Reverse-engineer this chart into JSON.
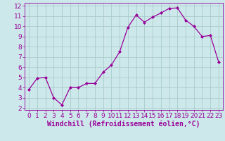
{
  "x_values": [
    0,
    1,
    2,
    3,
    4,
    5,
    6,
    7,
    8,
    9,
    10,
    11,
    12,
    13,
    14,
    15,
    16,
    17,
    18,
    19,
    20,
    21,
    22,
    23
  ],
  "y_values": [
    3.8,
    4.9,
    5.0,
    3.0,
    2.3,
    4.0,
    4.0,
    4.4,
    4.4,
    5.5,
    6.2,
    7.5,
    9.9,
    11.1,
    10.4,
    10.9,
    11.3,
    11.75,
    11.8,
    10.6,
    10.0,
    9.0,
    9.1,
    6.5
  ],
  "line_color": "#990099",
  "marker": "D",
  "marker_size": 2,
  "bg_color": "#cce8ea",
  "grid_color": "#aacccc",
  "xlabel": "Windchill (Refroidissement éolien,°C)",
  "xlim": [
    -0.5,
    23.5
  ],
  "ylim": [
    1.8,
    12.3
  ],
  "yticks": [
    2,
    3,
    4,
    5,
    6,
    7,
    8,
    9,
    10,
    11,
    12
  ],
  "xticks": [
    0,
    1,
    2,
    3,
    4,
    5,
    6,
    7,
    8,
    9,
    10,
    11,
    12,
    13,
    14,
    15,
    16,
    17,
    18,
    19,
    20,
    21,
    22,
    23
  ],
  "tick_color": "#990099",
  "label_color": "#990099",
  "font_size": 6.5,
  "xlabel_fontsize": 7,
  "linewidth": 0.9
}
